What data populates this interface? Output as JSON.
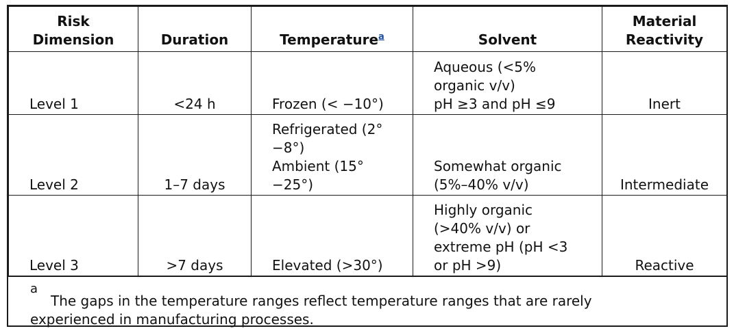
{
  "table": {
    "headers": {
      "risk_dimension": [
        "Risk",
        "Dimension"
      ],
      "duration": "Duration",
      "temperature": "Temperature",
      "temperature_footnote_mark": "a",
      "solvent": "Solvent",
      "material_reactivity": [
        "Material",
        "Reactivity"
      ]
    },
    "rows": [
      {
        "level": "Level 1",
        "duration": "<24 h",
        "temperature": [
          "Frozen (< −10°)"
        ],
        "solvent": [
          "Aqueous (<5%",
          "organic v/v)",
          "pH ≥3 and pH ≤9"
        ],
        "reactivity": "Inert"
      },
      {
        "level": "Level 2",
        "duration": "1–7 days",
        "temperature": [
          "Refrigerated (2°",
          "−8°)",
          "Ambient (15°",
          "−25°)"
        ],
        "solvent": [
          "Somewhat organic",
          "(5%–40% v/v)"
        ],
        "reactivity": "Intermediate"
      },
      {
        "level": "Level 3",
        "duration": ">7 days",
        "temperature": [
          "Elevated (>30°)"
        ],
        "solvent": [
          "Highly organic",
          "(>40% v/v) or",
          "extreme pH (pH <3",
          "or pH >9)"
        ],
        "reactivity": "Reactive"
      }
    ],
    "footnote": {
      "mark": "a",
      "text_line1": "The gaps in the temperature ranges reflect temperature ranges that are rarely",
      "text_line2": "experienced in manufacturing processes."
    }
  }
}
